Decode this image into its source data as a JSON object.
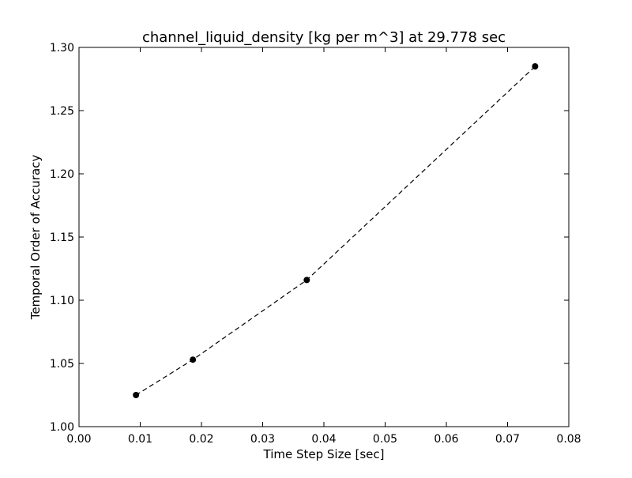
{
  "chart_data": {
    "type": "line",
    "title": "channel_liquid_density [kg per m^3] at 29.778 sec",
    "xlabel": "Time Step Size [sec]",
    "ylabel": "Temporal Order of Accuracy",
    "xlim": [
      0.0,
      0.08
    ],
    "ylim": [
      1.0,
      1.3
    ],
    "x_ticks": [
      "0.00",
      "0.01",
      "0.02",
      "0.03",
      "0.04",
      "0.05",
      "0.06",
      "0.07",
      "0.08"
    ],
    "y_ticks": [
      "1.00",
      "1.05",
      "1.10",
      "1.15",
      "1.20",
      "1.25",
      "1.30"
    ],
    "grid": false,
    "line_style": "dashed",
    "marker": "circle",
    "series_color": "#000000",
    "series": [
      {
        "x": [
          0.00931,
          0.0186,
          0.0372,
          0.0745
        ],
        "y": [
          1.025,
          1.053,
          1.116,
          1.285
        ]
      }
    ]
  }
}
